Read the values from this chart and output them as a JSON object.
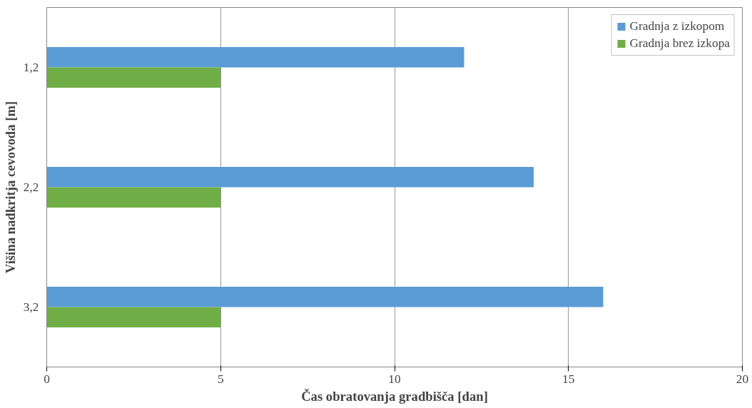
{
  "chart_data": {
    "type": "bar",
    "orientation": "horizontal",
    "categories": [
      "1,2",
      "2,2",
      "3,2"
    ],
    "series": [
      {
        "name": "Gradnja z izkopom",
        "color": "#5b9bd5",
        "values": [
          12,
          14,
          16
        ]
      },
      {
        "name": "Gradnja brez izkopa",
        "color": "#70ad47",
        "values": [
          5,
          5,
          5
        ]
      }
    ],
    "xlabel": "Čas obratovanja gradbišča [dan]",
    "ylabel": "Višina nadkritja cevovoda [m]",
    "xlim": [
      0,
      20
    ],
    "xticks": [
      0,
      5,
      10,
      15,
      20
    ],
    "grid": "x",
    "legend": "top right"
  }
}
